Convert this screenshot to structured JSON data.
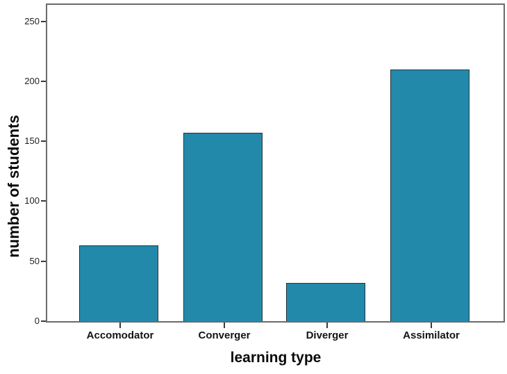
{
  "chart_data": {
    "type": "bar",
    "title": "",
    "categories": [
      "Accomodator",
      "Converger",
      "Diverger",
      "Assimilator"
    ],
    "values": [
      63,
      157,
      32,
      210
    ],
    "xlabel": "learning type",
    "ylabel": "number of students",
    "yticks": [
      0,
      50,
      100,
      150,
      200,
      250
    ],
    "ylim": [
      0,
      264
    ],
    "grid": false,
    "legend": null,
    "colors": {
      "bar_fill": "#2389ab",
      "bar_border": "#22333c",
      "frame": "#6b6b6b",
      "tick": "#3a3a3a",
      "text": "#141414",
      "background": "#ffffff"
    }
  }
}
